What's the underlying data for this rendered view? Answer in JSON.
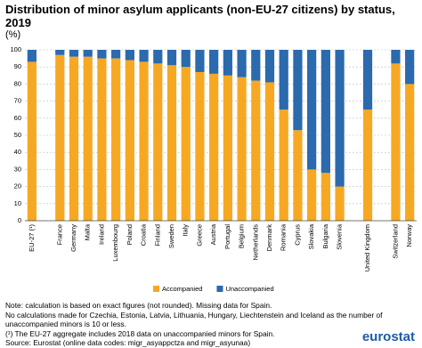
{
  "chart_data": {
    "type": "stacked-bar",
    "title": "Distribution of minor asylum applicants (non-EU-27 citizens) by status, 2019",
    "unit": "(%)",
    "categories": [
      "EU-27 (¹)",
      null,
      "France",
      "Germany",
      "Malta",
      "Ireland",
      "Luxembourg",
      "Poland",
      "Croatia",
      "Finland",
      "Sweden",
      "Italy",
      "Greece",
      "Austria",
      "Portugal",
      "Belgium",
      "Netherlands",
      "Denmark",
      "Romania",
      "Cyprus",
      "Slovakia",
      "Bulgaria",
      "Slovenia",
      null,
      "United Kingdom",
      null,
      "Switzerland",
      "Norway"
    ],
    "series": [
      {
        "name": "Accompanied",
        "color": "#f7a823",
        "values": [
          93,
          null,
          97,
          96,
          96,
          95,
          95,
          94,
          93,
          92,
          91,
          90,
          87,
          86,
          85,
          84,
          82,
          81,
          65,
          53,
          30,
          28,
          20,
          null,
          65,
          null,
          92,
          80
        ]
      },
      {
        "name": "Unaccompanied",
        "color": "#2a6aad",
        "values": [
          7,
          null,
          3,
          4,
          4,
          5,
          5,
          6,
          7,
          8,
          9,
          10,
          13,
          14,
          15,
          16,
          18,
          19,
          35,
          47,
          70,
          72,
          80,
          null,
          35,
          null,
          8,
          20
        ]
      }
    ],
    "ylim": [
      0,
      100
    ],
    "yticks": [
      0,
      10,
      20,
      30,
      40,
      50,
      60,
      70,
      80,
      90,
      100
    ],
    "grid": true,
    "notes": [
      "Note: calculation is based on exact figures (not rounded). Missing data for Spain.",
      "No calculations made for Czechia, Estonia, Latvia, Lithuania, Hungary, Liechtenstein and Iceland as the number of unaccompanied minors is 10 or less.",
      "(¹) The EU-27 aggregate includes 2018 data on unaccompanied minors for Spain.",
      "Source: Eurostat (online data codes: migr_asyappctza and migr_asyunaa)"
    ],
    "logo": "eurostat"
  }
}
